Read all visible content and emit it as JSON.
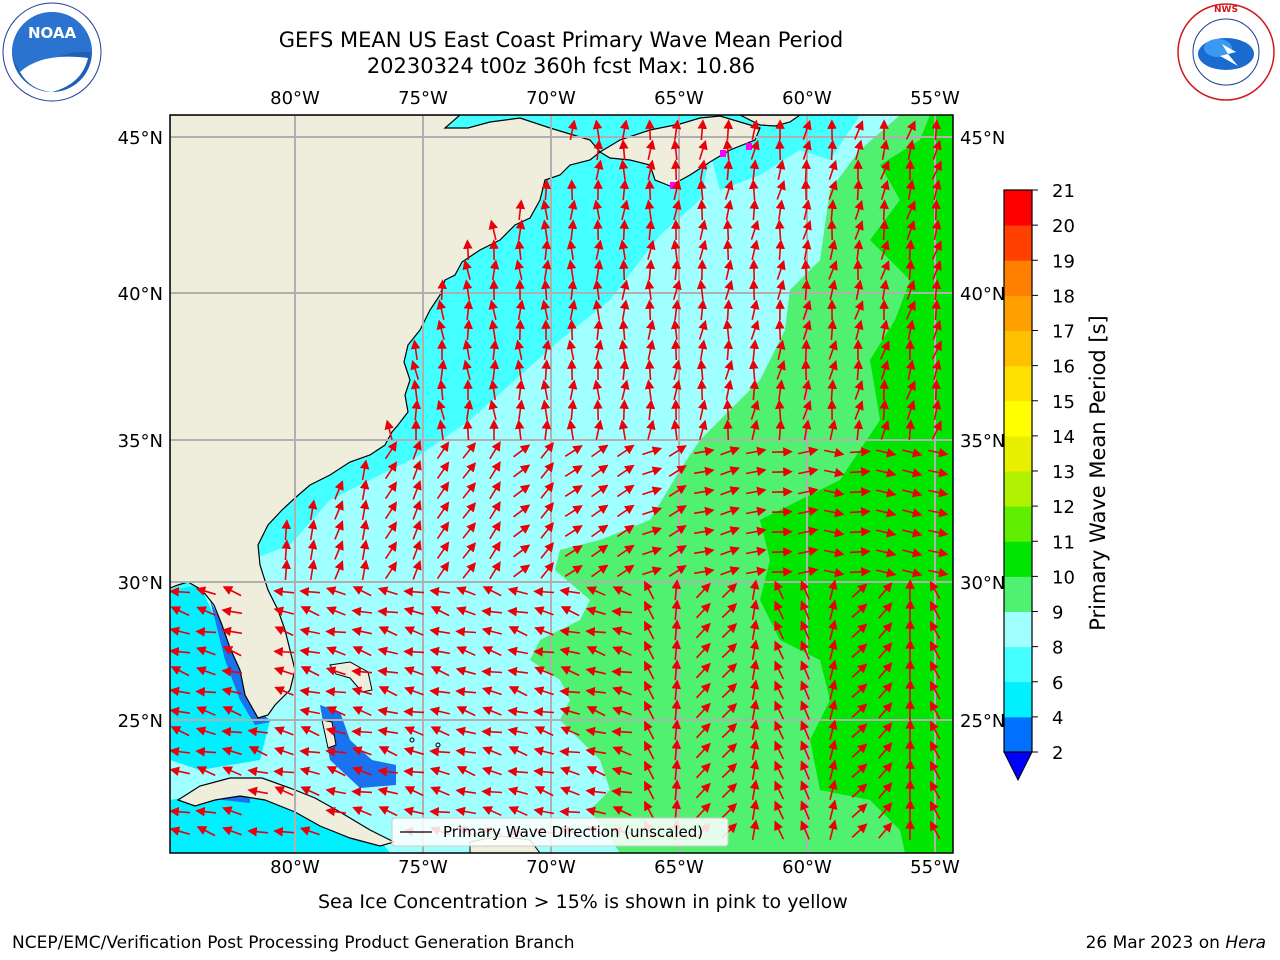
{
  "header": {
    "title_line1": "GEFS MEAN US East Coast Primary Wave Mean Period",
    "title_line2": "20230324 t00z 360h fcst   Max: 10.86"
  },
  "logos": {
    "left": "NOAA",
    "left_ring": "NATIONAL OCEANIC AND ATMOSPHERIC ADMINISTRATION · U.S. DEPARTMENT OF COMMERCE ·",
    "right_ring": "NATIONAL WEATHER SERVICE"
  },
  "map": {
    "lon_labels": [
      "80°W",
      "75°W",
      "70°W",
      "65°W",
      "60°W",
      "55°W"
    ],
    "lat_labels": [
      "45°N",
      "40°N",
      "35°N",
      "30°N",
      "25°N"
    ],
    "lon_range": [
      -85,
      -54.5
    ],
    "lat_range": [
      20.5,
      46
    ],
    "legend_label": "Primary Wave Direction (unscaled)",
    "colors": {
      "land": "#efeedc",
      "grid": "#b0b0b0",
      "arrows": "#e8000b",
      "sea_ice": "#ff00ff"
    }
  },
  "colorbar": {
    "label": "Primary Wave Mean Period [s]",
    "ticks": [
      "2",
      "4",
      "6",
      "8",
      "9",
      "10",
      "11",
      "12",
      "13",
      "14",
      "15",
      "16",
      "17",
      "18",
      "19",
      "20",
      "21"
    ],
    "colors": [
      "#0070ff",
      "#00f0ff",
      "#44ffff",
      "#a0ffff",
      "#50f070",
      "#00e600",
      "#60ee00",
      "#b0f000",
      "#e8f000",
      "#ffff00",
      "#ffe000",
      "#ffc000",
      "#ffa000",
      "#ff8000",
      "#ff4000",
      "#ff0000"
    ],
    "extend_color": "#0000ff"
  },
  "footer": {
    "note": "Sea Ice Concentration > 15% is shown in pink to yellow",
    "left_credit": "NCEP/EMC/Verification Post Processing Product Generation Branch",
    "right_credit": "26 Mar 2023 on",
    "right_credit_italic": "Hera"
  }
}
